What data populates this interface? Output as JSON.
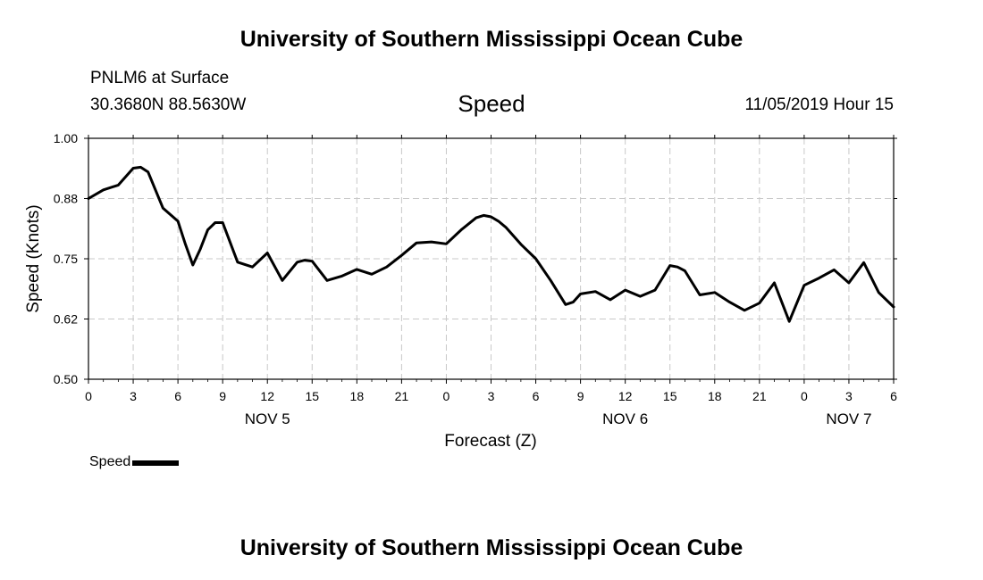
{
  "header": {
    "title": "University of Southern Mississippi Ocean Cube",
    "station": "PNLM6 at Surface",
    "coords": "30.3680N 88.5630W",
    "variable": "Speed",
    "datetime": "11/05/2019 Hour 15"
  },
  "footer": {
    "title": "University of Southern Mississippi Ocean Cube"
  },
  "legend": {
    "label": "Speed"
  },
  "chart_data": {
    "type": "line",
    "xlabel": "Forecast (Z)",
    "ylabel": "Speed (Knots)",
    "xlim": [
      0,
      54
    ],
    "ylim": [
      0.5,
      1.0
    ],
    "yticks": [
      "1.00",
      "0.88",
      "0.75",
      "0.62",
      "0.50"
    ],
    "ytick_values": [
      1.0,
      0.875,
      0.75,
      0.625,
      0.5
    ],
    "xticks": [
      {
        "h": 0,
        "label": "0"
      },
      {
        "h": 3,
        "label": "3"
      },
      {
        "h": 6,
        "label": "6"
      },
      {
        "h": 9,
        "label": "9"
      },
      {
        "h": 12,
        "label": "12"
      },
      {
        "h": 15,
        "label": "15"
      },
      {
        "h": 18,
        "label": "18"
      },
      {
        "h": 21,
        "label": "21"
      },
      {
        "h": 24,
        "label": "0"
      },
      {
        "h": 27,
        "label": "3"
      },
      {
        "h": 30,
        "label": "6"
      },
      {
        "h": 33,
        "label": "9"
      },
      {
        "h": 36,
        "label": "12"
      },
      {
        "h": 39,
        "label": "15"
      },
      {
        "h": 42,
        "label": "18"
      },
      {
        "h": 45,
        "label": "21"
      },
      {
        "h": 48,
        "label": "0"
      },
      {
        "h": 51,
        "label": "3"
      },
      {
        "h": 54,
        "label": "6"
      }
    ],
    "day_labels": [
      {
        "h": 12,
        "label": "NOV 5"
      },
      {
        "h": 36,
        "label": "NOV 6"
      },
      {
        "h": 51,
        "label": "NOV 7"
      }
    ],
    "grid": true,
    "series": [
      {
        "name": "Speed",
        "x": [
          0,
          1,
          2,
          3,
          3.5,
          4,
          5,
          6,
          6.5,
          7,
          7.5,
          8,
          8.5,
          9,
          10,
          11,
          12,
          13,
          14,
          14.5,
          15,
          16,
          17,
          18,
          19,
          20,
          21,
          22,
          23,
          24,
          25,
          26,
          26.5,
          27,
          27.5,
          28,
          29,
          30,
          31,
          32,
          32.5,
          33,
          34,
          35,
          36,
          37,
          38,
          39,
          39.5,
          40,
          41,
          42,
          43,
          44,
          45,
          46,
          47,
          48,
          49,
          50,
          51,
          52,
          53,
          54
        ],
        "y": [
          0.875,
          0.893,
          0.903,
          0.938,
          0.94,
          0.93,
          0.855,
          0.828,
          0.78,
          0.737,
          0.77,
          0.81,
          0.825,
          0.825,
          0.743,
          0.733,
          0.762,
          0.705,
          0.743,
          0.747,
          0.745,
          0.705,
          0.714,
          0.728,
          0.718,
          0.733,
          0.757,
          0.783,
          0.785,
          0.781,
          0.81,
          0.835,
          0.84,
          0.837,
          0.828,
          0.815,
          0.78,
          0.75,
          0.705,
          0.655,
          0.66,
          0.677,
          0.682,
          0.665,
          0.685,
          0.672,
          0.685,
          0.736,
          0.733,
          0.725,
          0.675,
          0.68,
          0.66,
          0.643,
          0.658,
          0.7,
          0.62,
          0.695,
          0.71,
          0.727,
          0.7,
          0.742,
          0.68,
          0.65
        ]
      }
    ]
  }
}
